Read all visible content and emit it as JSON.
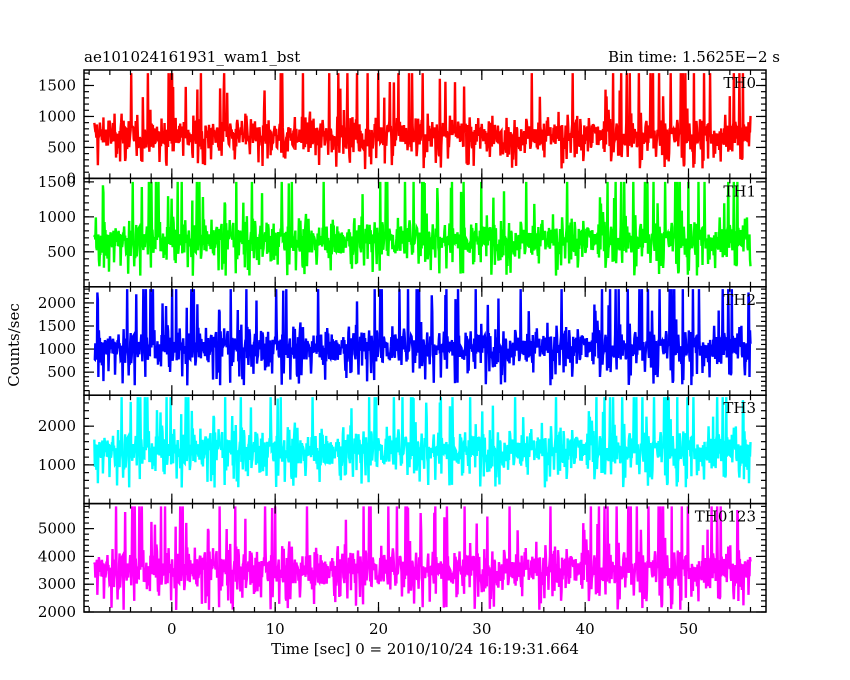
{
  "chart_data": {
    "type": "line",
    "title_left": "ae101024161931_wam1_bst",
    "title_right": "Bin time: 1.5625E−2 s",
    "xlabel": "Time [sec] 0 = 2010/10/24 16:19:31.664",
    "ylabel": "Counts/sec",
    "xlim": [
      -8.5,
      57.5
    ],
    "xticks": [
      0,
      10,
      20,
      30,
      40,
      50
    ],
    "xtick_labels": [
      "0",
      "10",
      "20",
      "30",
      "40",
      "50"
    ],
    "data_range": [
      -7.5,
      56.0
    ],
    "panels": [
      {
        "name": "TH0",
        "color": "#ff0000",
        "ylim": [
          0,
          1750
        ],
        "yticks": [
          0,
          500,
          1000,
          1500
        ],
        "ytick_labels": [
          "0",
          "500",
          "1000",
          "1500"
        ],
        "mean": 700,
        "sd": 230,
        "min": 150,
        "max": 1700
      },
      {
        "name": "TH1",
        "color": "#00ff00",
        "ylim": [
          0,
          1550
        ],
        "yticks": [
          500,
          1000,
          1500
        ],
        "ytick_labels": [
          "500",
          "1000",
          "1500"
        ],
        "mean": 680,
        "sd": 220,
        "min": 150,
        "max": 1500
      },
      {
        "name": "TH2",
        "color": "#0000ff",
        "ylim": [
          0,
          2350
        ],
        "yticks": [
          500,
          1000,
          1500,
          2000
        ],
        "ytick_labels": [
          "500",
          "1000",
          "1500",
          "2000"
        ],
        "mean": 1050,
        "sd": 320,
        "min": 200,
        "max": 2300
      },
      {
        "name": "TH3",
        "color": "#00ffff",
        "ylim": [
          0,
          2800
        ],
        "yticks": [
          1000,
          2000
        ],
        "ytick_labels": [
          "1000",
          "2000"
        ],
        "mean": 1400,
        "sd": 420,
        "min": 400,
        "max": 2750
      },
      {
        "name": "TH0123",
        "color": "#ff00ff",
        "ylim": [
          2000,
          5900
        ],
        "yticks": [
          2000,
          3000,
          4000,
          5000
        ],
        "ytick_labels": [
          "2000",
          "3000",
          "4000",
          "5000"
        ],
        "mean": 3550,
        "sd": 600,
        "min": 2050,
        "max": 5800
      }
    ]
  }
}
